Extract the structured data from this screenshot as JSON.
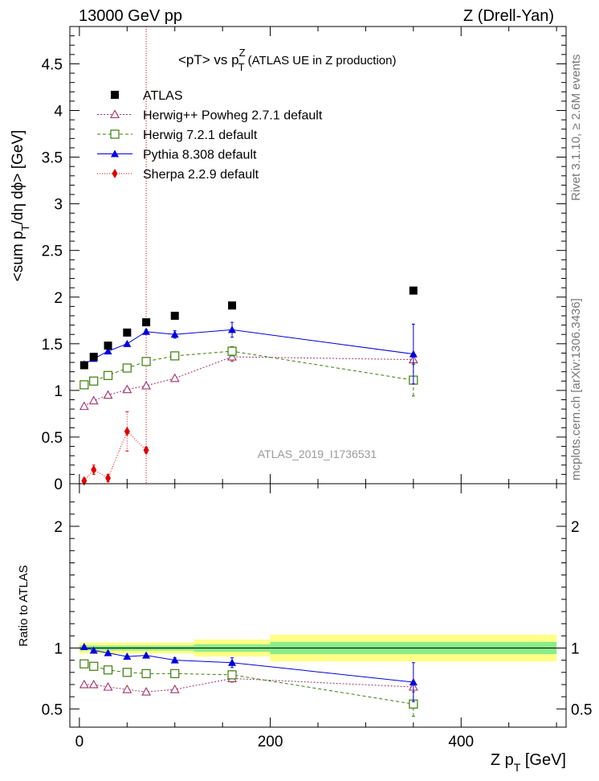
{
  "header": {
    "left": "13000 GeV pp",
    "right": "Z (Drell-Yan)"
  },
  "side_labels": {
    "upper": "Rivet 3.1.10, ≥ 2.6M events",
    "lower": "mcplots.cern.ch [arXiv:1306.3436]"
  },
  "chart_data": [
    {
      "type": "scatter",
      "panel": "main",
      "title_parts": {
        "pre": "<pT> vs p",
        "sup": "Z",
        "sub": "T",
        "post": " (ATLAS UE in Z production)"
      },
      "ylabel_parts": {
        "a": "<sum p",
        "b": "T",
        "c": "/dη dϕ> [GeV]"
      },
      "watermark": "ATLAS_2019_I1736531",
      "xlim": [
        -10,
        510
      ],
      "ylim": [
        0,
        4.9
      ],
      "yticks": [
        0,
        0.5,
        1,
        1.5,
        2,
        2.5,
        3,
        3.5,
        4,
        4.5
      ],
      "ytick_labels": [
        "0",
        "0.5",
        "1",
        "1.5",
        "2",
        "2.5",
        "3",
        "3.5",
        "4",
        "4.5"
      ],
      "vline_x": 70,
      "legend_position": "top-left",
      "series": [
        {
          "name": "ATLAS",
          "style": "data",
          "color": "#000000",
          "x": [
            5,
            15,
            30,
            50,
            70,
            100,
            160,
            350
          ],
          "y": [
            1.27,
            1.36,
            1.48,
            1.62,
            1.73,
            1.8,
            1.91,
            2.07
          ]
        },
        {
          "name": "Herwig++ Powheg 2.7.1 default",
          "style": "open-triangle",
          "color": "#a0306a",
          "dash": "2,2",
          "x": [
            5,
            15,
            30,
            50,
            70,
            100,
            160,
            350
          ],
          "y": [
            0.83,
            0.89,
            0.95,
            1.01,
            1.05,
            1.13,
            1.36,
            1.33
          ],
          "err": [
            0.01,
            0.01,
            0.01,
            0.01,
            0.01,
            0.02,
            0.05,
            0.05
          ]
        },
        {
          "name": "Herwig 7.2.1 default",
          "style": "open-square",
          "color": "#3a7d0a",
          "dash": "4,3",
          "x": [
            5,
            15,
            30,
            50,
            70,
            100,
            160,
            350
          ],
          "y": [
            1.06,
            1.1,
            1.16,
            1.24,
            1.31,
            1.37,
            1.42,
            1.11
          ],
          "err": [
            0.01,
            0.01,
            0.01,
            0.01,
            0.01,
            0.02,
            0.05,
            0.17
          ]
        },
        {
          "name": "Pythia 8.308 default",
          "style": "filled-triangle",
          "color": "#0000dd",
          "dash": "",
          "x": [
            5,
            15,
            30,
            50,
            70,
            100,
            160,
            350
          ],
          "y": [
            1.28,
            1.34,
            1.42,
            1.5,
            1.63,
            1.6,
            1.65,
            1.39
          ],
          "err": [
            0.01,
            0.01,
            0.01,
            0.01,
            0.02,
            0.04,
            0.08,
            0.32
          ]
        },
        {
          "name": "Sherpa 2.2.9 default",
          "style": "filled-diamond",
          "color": "#e00000",
          "dash": "1,2",
          "x": [
            5,
            15,
            30,
            50,
            70
          ],
          "y": [
            0.03,
            0.15,
            0.06,
            0.56,
            0.36
          ],
          "err": [
            0.03,
            0.05,
            0.04,
            0.21,
            0.03
          ]
        }
      ]
    },
    {
      "type": "scatter",
      "panel": "ratio",
      "ylabel": "Ratio to ATLAS",
      "xlabel_parts": {
        "a": "Z p",
        "b": "T",
        "c": " [GeV]"
      },
      "xlim": [
        -10,
        510
      ],
      "ylim": [
        0.35,
        2.35
      ],
      "yticks": [
        0.5,
        1,
        2
      ],
      "ytick_labels": [
        "0.5",
        "1",
        "2"
      ],
      "xticks": [
        0,
        200,
        400
      ],
      "xtick_labels": [
        "0",
        "200",
        "400"
      ],
      "bands": [
        {
          "x0": 0,
          "x1": 120,
          "inner": 0.02,
          "outer": 0.045
        },
        {
          "x0": 120,
          "x1": 200,
          "inner": 0.03,
          "outer": 0.07
        },
        {
          "x0": 200,
          "x1": 500,
          "inner": 0.05,
          "outer": 0.11
        }
      ],
      "series": [
        {
          "name": "Herwig++ Powheg 2.7.1 default",
          "style": "open-triangle",
          "color": "#a0306a",
          "dash": "2,2",
          "x": [
            5,
            15,
            30,
            50,
            70,
            100,
            160,
            350
          ],
          "y": [
            0.7,
            0.7,
            0.68,
            0.66,
            0.64,
            0.66,
            0.75,
            0.68
          ],
          "err": [
            0.01,
            0.01,
            0.01,
            0.01,
            0.01,
            0.01,
            0.03,
            0.02
          ]
        },
        {
          "name": "Herwig 7.2.1 default",
          "style": "open-square",
          "color": "#3a7d0a",
          "dash": "4,3",
          "x": [
            5,
            15,
            30,
            50,
            70,
            100,
            160,
            350
          ],
          "y": [
            0.87,
            0.85,
            0.82,
            0.8,
            0.79,
            0.79,
            0.78,
            0.54
          ],
          "err": [
            0.01,
            0.01,
            0.01,
            0.01,
            0.01,
            0.02,
            0.03,
            0.1
          ]
        },
        {
          "name": "Pythia 8.308 default",
          "style": "filled-triangle",
          "color": "#0000dd",
          "dash": "",
          "x": [
            5,
            15,
            30,
            50,
            70,
            100,
            160,
            350
          ],
          "y": [
            1.01,
            0.98,
            0.96,
            0.93,
            0.94,
            0.9,
            0.88,
            0.72
          ],
          "err": [
            0.01,
            0.01,
            0.01,
            0.01,
            0.01,
            0.02,
            0.04,
            0.16
          ]
        }
      ]
    }
  ]
}
